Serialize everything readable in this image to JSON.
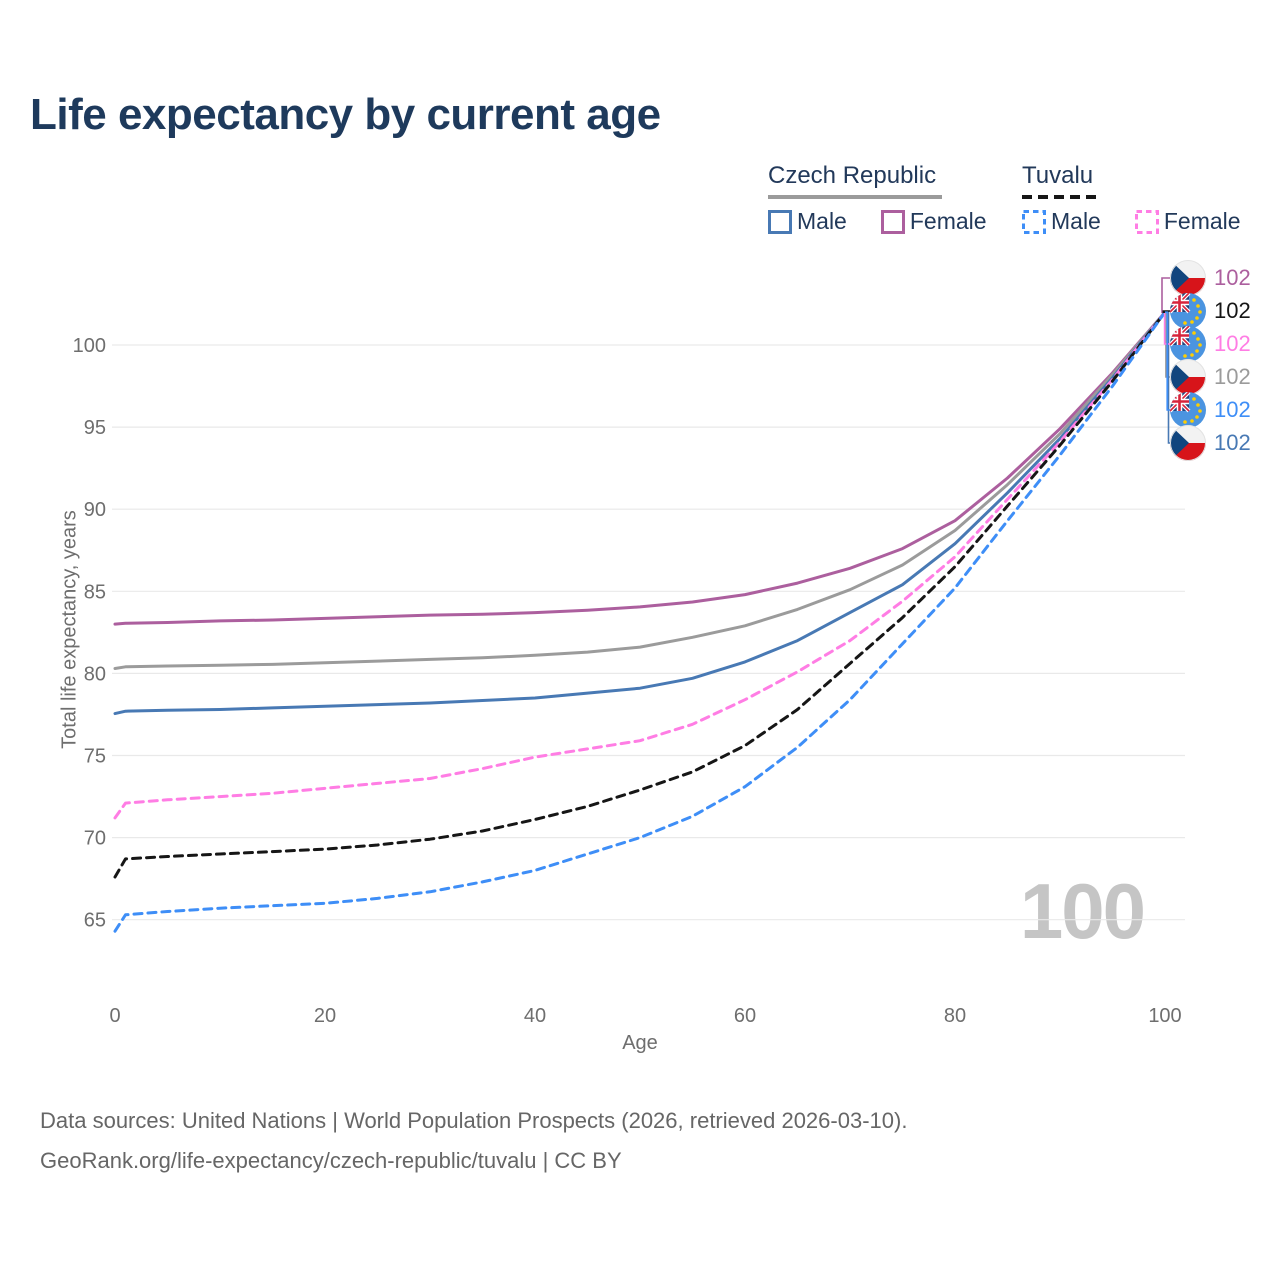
{
  "title": "Life expectancy by current age",
  "legend": {
    "groups": [
      {
        "label": "Czech Republic",
        "line_style": "solid",
        "underline_color": "#9b9b9b",
        "items": [
          {
            "label": "Male",
            "color": "#4879b4"
          },
          {
            "label": "Female",
            "color": "#ac5f9e"
          }
        ]
      },
      {
        "label": "Tuvalu",
        "line_style": "dashed",
        "underline_color": "#161616",
        "items": [
          {
            "label": "Male",
            "color": "#3e8ef7"
          },
          {
            "label": "Female",
            "color": "#ff7de4"
          }
        ]
      }
    ]
  },
  "chart_data": {
    "type": "line",
    "title": "Life expectancy by current age",
    "xlabel": "Age",
    "ylabel": "Total life expectancy, years",
    "x_ticks": [
      0,
      20,
      40,
      60,
      80,
      100
    ],
    "y_ticks": [
      65,
      70,
      75,
      80,
      85,
      90,
      95,
      100
    ],
    "xlim": [
      0,
      100
    ],
    "ylim": [
      63,
      103
    ],
    "grid": "horizontal",
    "legend_position": "top-right",
    "watermark": "100",
    "ages": [
      0,
      1,
      5,
      10,
      15,
      20,
      25,
      30,
      35,
      40,
      45,
      50,
      55,
      60,
      65,
      70,
      75,
      80,
      85,
      90,
      95,
      100
    ],
    "series": [
      {
        "id": "czech-female",
        "name": "Czech Republic Female",
        "color": "#ac5f9e",
        "dashed": false,
        "label_slot": 0,
        "end_value": 102,
        "values": [
          83,
          83.05,
          83.1,
          83.2,
          83.25,
          83.35,
          83.45,
          83.55,
          83.6,
          83.7,
          83.85,
          84.05,
          84.35,
          84.8,
          85.5,
          86.4,
          87.6,
          89.3,
          91.9,
          94.9,
          98.3,
          102
        ]
      },
      {
        "id": "czech-both",
        "name": "Czech Republic Both sexes",
        "color": "#9b9b9b",
        "dashed": false,
        "label_slot": 3,
        "end_value": 102,
        "values": [
          80.3,
          80.4,
          80.45,
          80.5,
          80.55,
          80.65,
          80.75,
          80.85,
          80.95,
          81.1,
          81.3,
          81.6,
          82.2,
          82.9,
          83.9,
          85.1,
          86.6,
          88.7,
          91.5,
          94.6,
          98.2,
          102
        ]
      },
      {
        "id": "czech-male",
        "name": "Czech Republic Male",
        "color": "#4879b4",
        "dashed": false,
        "label_slot": 5,
        "end_value": 102,
        "values": [
          77.55,
          77.7,
          77.75,
          77.8,
          77.9,
          78,
          78.1,
          78.2,
          78.35,
          78.5,
          78.8,
          79.1,
          79.7,
          80.7,
          82,
          83.7,
          85.4,
          87.9,
          91,
          94.3,
          98,
          102
        ]
      },
      {
        "id": "tuvalu-female",
        "name": "Tuvalu Female",
        "color": "#ff7de4",
        "dashed": true,
        "label_slot": 2,
        "end_value": 102,
        "values": [
          71.2,
          72.1,
          72.3,
          72.5,
          72.7,
          73,
          73.3,
          73.6,
          74.2,
          74.9,
          75.4,
          75.9,
          76.9,
          78.4,
          80.1,
          82,
          84.4,
          87.1,
          90.6,
          94.1,
          97.9,
          102
        ]
      },
      {
        "id": "tuvalu-both",
        "name": "Tuvalu Both sexes",
        "color": "#161616",
        "dashed": true,
        "label_slot": 1,
        "end_value": 102,
        "values": [
          67.6,
          68.7,
          68.85,
          69,
          69.15,
          69.3,
          69.55,
          69.9,
          70.4,
          71.1,
          71.9,
          72.9,
          74,
          75.6,
          77.8,
          80.6,
          83.4,
          86.5,
          90.2,
          93.9,
          97.8,
          102
        ]
      },
      {
        "id": "tuvalu-male",
        "name": "Tuvalu Male",
        "color": "#3e8ef7",
        "dashed": true,
        "label_slot": 4,
        "end_value": 102,
        "values": [
          64.3,
          65.3,
          65.5,
          65.7,
          65.85,
          66,
          66.3,
          66.7,
          67.3,
          68,
          69,
          70,
          71.3,
          73.1,
          75.5,
          78.4,
          81.8,
          85.2,
          89.3,
          93.3,
          97.5,
          102
        ]
      }
    ],
    "right_labels": [
      {
        "flag": "cz",
        "value": "102",
        "color": "#ac5f9e",
        "series": "czech-female"
      },
      {
        "flag": "tv",
        "value": "102",
        "color": "#161616",
        "series": "tuvalu-both"
      },
      {
        "flag": "tv",
        "value": "102",
        "color": "#ff7de4",
        "series": "tuvalu-female"
      },
      {
        "flag": "cz",
        "value": "102",
        "color": "#9b9b9b",
        "series": "czech-both"
      },
      {
        "flag": "tv",
        "value": "102",
        "color": "#3e8ef7",
        "series": "tuvalu-male"
      },
      {
        "flag": "cz",
        "value": "102",
        "color": "#4879b4",
        "series": "czech-male"
      }
    ],
    "flag_colors": {
      "cz": {
        "white": "#f2f2f2",
        "red": "#d7141a",
        "blue": "#11457e"
      },
      "tv": {
        "field": "#4b94e0",
        "jack_navy": "#23457c",
        "jack_white": "#ffffff",
        "jack_red": "#d7243b",
        "star": "#ffce00"
      }
    }
  },
  "footer": {
    "line1": "Data sources: United Nations | World Population Prospects (2026, retrieved 2026-03-10).",
    "line2": "GeoRank.org/life-expectancy/czech-republic/tuvalu | CC BY"
  }
}
